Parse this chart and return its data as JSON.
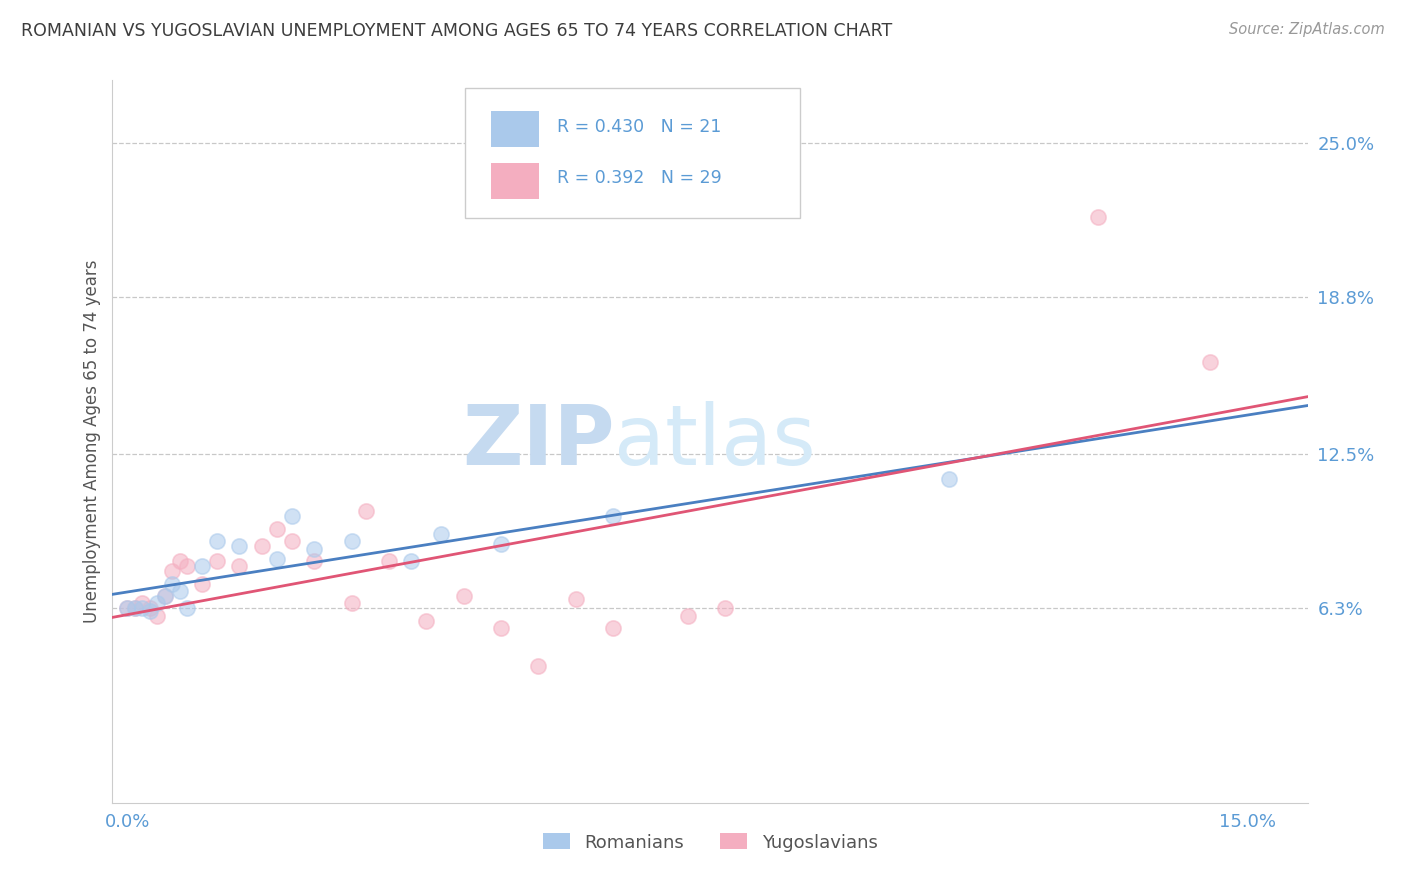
{
  "title": "ROMANIAN VS YUGOSLAVIAN UNEMPLOYMENT AMONG AGES 65 TO 74 YEARS CORRELATION CHART",
  "source_text": "Source: ZipAtlas.com",
  "ylabel": "Unemployment Among Ages 65 to 74 years",
  "ytick_labels": [
    "6.3%",
    "12.5%",
    "18.8%",
    "25.0%"
  ],
  "ytick_values": [
    0.063,
    0.125,
    0.188,
    0.25
  ],
  "xtick_labels": [
    "0.0%",
    "",
    "",
    "",
    "",
    "15.0%"
  ],
  "xtick_values": [
    0.0,
    0.03,
    0.06,
    0.09,
    0.12,
    0.15
  ],
  "xlim": [
    -0.002,
    0.158
  ],
  "ylim": [
    -0.015,
    0.275
  ],
  "background_color": "#ffffff",
  "romanian_color": "#aac9eb",
  "yugoslavian_color": "#f4aec0",
  "romanian_line_color": "#4a7fc1",
  "yugoslavian_line_color": "#e05575",
  "watermark_zip_color": "#c8dff0",
  "watermark_atlas_color": "#d0e8f0",
  "grid_color": "#c8c8c8",
  "axis_label_color": "#5b9bd5",
  "title_color": "#3d3d3d",
  "legend_text_color": "#5b9bd5",
  "romanians_x": [
    0.0,
    0.001,
    0.002,
    0.003,
    0.004,
    0.005,
    0.006,
    0.007,
    0.008,
    0.01,
    0.012,
    0.015,
    0.02,
    0.022,
    0.025,
    0.03,
    0.038,
    0.042,
    0.05,
    0.065,
    0.11
  ],
  "romanians_y": [
    0.063,
    0.063,
    0.063,
    0.062,
    0.065,
    0.068,
    0.073,
    0.07,
    0.063,
    0.08,
    0.09,
    0.088,
    0.083,
    0.1,
    0.087,
    0.09,
    0.082,
    0.093,
    0.089,
    0.1,
    0.115
  ],
  "yugoslavians_x": [
    0.0,
    0.001,
    0.002,
    0.003,
    0.004,
    0.005,
    0.006,
    0.007,
    0.008,
    0.01,
    0.012,
    0.015,
    0.018,
    0.02,
    0.022,
    0.025,
    0.03,
    0.032,
    0.035,
    0.04,
    0.045,
    0.05,
    0.055,
    0.06,
    0.065,
    0.075,
    0.08,
    0.13,
    0.145
  ],
  "yugoslavians_y": [
    0.063,
    0.063,
    0.065,
    0.063,
    0.06,
    0.068,
    0.078,
    0.082,
    0.08,
    0.073,
    0.082,
    0.08,
    0.088,
    0.095,
    0.09,
    0.082,
    0.065,
    0.102,
    0.082,
    0.058,
    0.068,
    0.055,
    0.04,
    0.067,
    0.055,
    0.06,
    0.063,
    0.22,
    0.162
  ],
  "dot_size": 120,
  "dot_linewidth": 1.2
}
